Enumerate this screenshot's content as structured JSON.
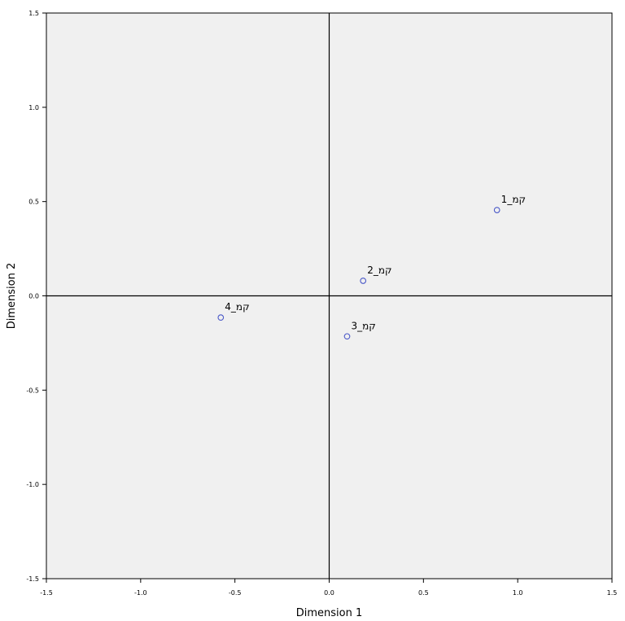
{
  "chart_data": {
    "type": "scatter",
    "xlabel": "Dimension 1",
    "ylabel": "Dimension 2",
    "xlim": [
      -1.5,
      1.5
    ],
    "ylim": [
      -1.5,
      1.5
    ],
    "xticks": [
      -1.5,
      -1.0,
      -0.5,
      0.0,
      0.5,
      1.0,
      1.5
    ],
    "yticks": [
      -1.5,
      -1.0,
      -0.5,
      0.0,
      0.5,
      1.0,
      1.5
    ],
    "xtick_labels": [
      "-1.5",
      "-1.0",
      "-0.5",
      "0.0",
      "0.5",
      "1.0",
      "1.5"
    ],
    "ytick_labels": [
      "-1.5",
      "-1.0",
      "-0.5",
      "0.0",
      "0.5",
      "1.0",
      "1.5"
    ],
    "grid": false,
    "reference_lines": {
      "x": 0,
      "y": 0
    },
    "points": [
      {
        "label": "קמ_1",
        "x": 0.89,
        "y": 0.455
      },
      {
        "label": "קמ_2",
        "x": 0.18,
        "y": 0.08
      },
      {
        "label": "קמ_3",
        "x": 0.095,
        "y": -0.215
      },
      {
        "label": "קמ_4",
        "x": -0.575,
        "y": -0.115
      }
    ],
    "colors": {
      "plot_background": "#f0f0f0",
      "marker": "#4b59c8",
      "frame": "#000000"
    }
  }
}
